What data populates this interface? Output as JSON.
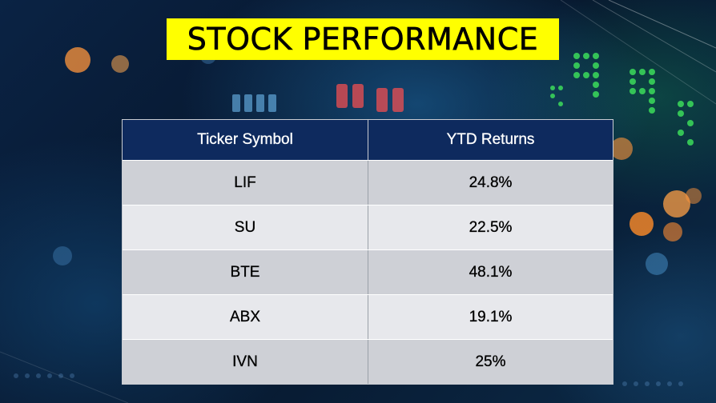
{
  "title": "STOCK PERFORMANCE",
  "table": {
    "headers": [
      "Ticker Symbol",
      "YTD Returns"
    ],
    "rows": [
      {
        "ticker": "LIF",
        "ytd": "24.8%"
      },
      {
        "ticker": "SU",
        "ytd": "22.5%"
      },
      {
        "ticker": "BTE",
        "ytd": "48.1%"
      },
      {
        "ticker": "ABX",
        "ytd": "19.1%"
      },
      {
        "ticker": "IVN",
        "ytd": "25%"
      }
    ]
  },
  "colors": {
    "title_bg": "#ffff00",
    "header_bg": "#0e2a5e",
    "row_odd": "#ced0d6",
    "row_even": "#e7e8ec"
  }
}
